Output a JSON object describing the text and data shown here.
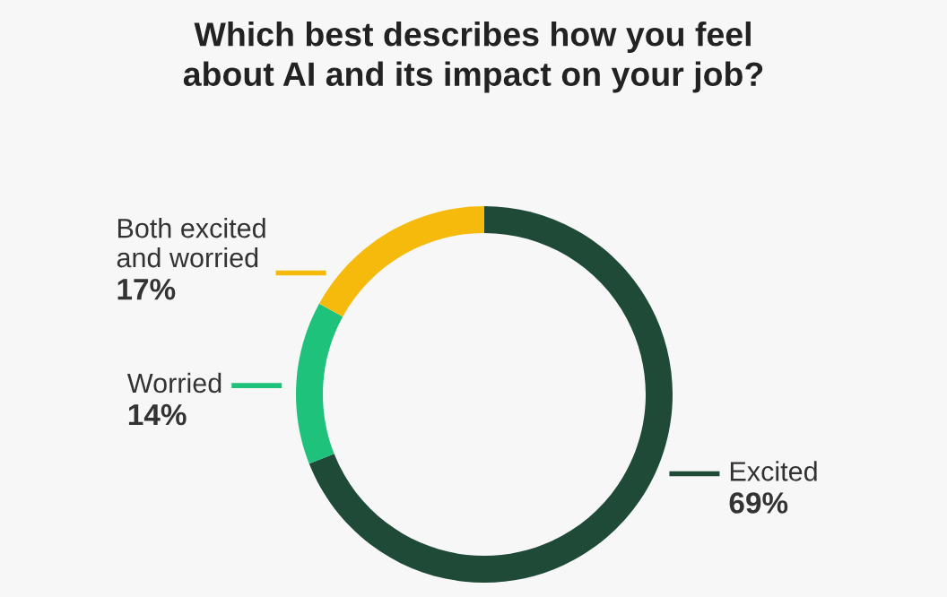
{
  "chart_data": {
    "type": "donut",
    "title": "Which best describes how you feel\nabout AI and its impact on your job?",
    "categories": [
      "Excited",
      "Worried",
      "Both excited\nand worried"
    ],
    "values": [
      69,
      14,
      17
    ],
    "colors": [
      "#1f4a37",
      "#1ec27a",
      "#f5ba0c"
    ],
    "value_labels": [
      "69%",
      "14%",
      "17%"
    ]
  }
}
